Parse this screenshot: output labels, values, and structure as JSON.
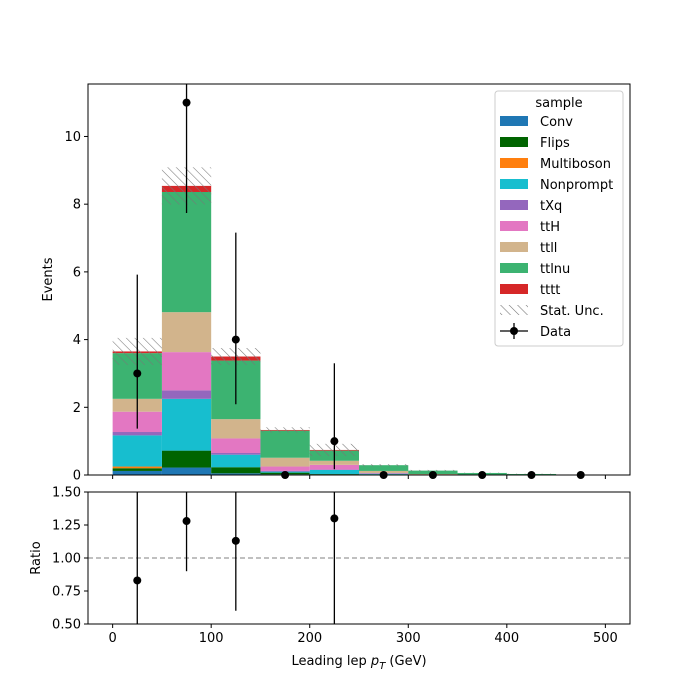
{
  "chart_data": [
    {
      "type": "bar",
      "stacked": true,
      "histogram": true,
      "bin_edges": [
        0,
        50,
        100,
        150,
        200,
        250,
        300,
        350,
        400,
        450,
        500
      ],
      "xlim": [
        -25,
        525
      ],
      "ylim": [
        0,
        11.55
      ],
      "x_ticks": [
        "0",
        "100",
        "200",
        "300",
        "400",
        "500"
      ],
      "y_ticks": [
        "0",
        "2",
        "4",
        "6",
        "8",
        "10"
      ],
      "xlabel": "",
      "ylabel": "Events",
      "legend_title": "sample",
      "legend_placement": "top-right",
      "grid": false,
      "series": [
        {
          "name": "Conv",
          "color": "#1f77b4",
          "values": [
            0.12,
            0.22,
            0.05,
            0.02,
            0.02,
            0.01,
            0.0,
            0.0,
            0.0,
            0.0
          ]
        },
        {
          "name": "Flips",
          "color": "#006400",
          "values": [
            0.08,
            0.5,
            0.18,
            0.05,
            0.01,
            0.01,
            0.0,
            0.0,
            0.0,
            0.0
          ]
        },
        {
          "name": "Multiboson",
          "color": "#ff7f0e",
          "values": [
            0.05,
            0.0,
            0.0,
            0.0,
            0.0,
            0.0,
            0.0,
            0.0,
            0.0,
            0.0
          ]
        },
        {
          "name": "Nonprompt",
          "color": "#17becf",
          "values": [
            0.92,
            1.53,
            0.37,
            0.03,
            0.12,
            0.02,
            0.0,
            0.0,
            0.0,
            0.0
          ]
        },
        {
          "name": "tXq",
          "color": "#9467bd",
          "values": [
            0.1,
            0.25,
            0.05,
            0.02,
            0.01,
            0.0,
            0.0,
            0.0,
            0.0,
            0.0
          ]
        },
        {
          "name": "ttH",
          "color": "#e377c2",
          "values": [
            0.6,
            1.13,
            0.43,
            0.13,
            0.14,
            0.02,
            0.01,
            0.0,
            0.0,
            0.0
          ]
        },
        {
          "name": "ttll",
          "color": "#d2b48c",
          "values": [
            0.38,
            1.18,
            0.57,
            0.26,
            0.12,
            0.06,
            0.02,
            0.01,
            0.0,
            0.0
          ]
        },
        {
          "name": "ttlnu",
          "color": "#3cb371",
          "values": [
            1.35,
            3.55,
            1.73,
            0.8,
            0.3,
            0.17,
            0.1,
            0.05,
            0.03,
            0.01
          ]
        },
        {
          "name": "tttt",
          "color": "#d62728",
          "values": [
            0.05,
            0.18,
            0.12,
            0.02,
            0.02,
            0.0,
            0.0,
            0.0,
            0.0,
            0.0
          ]
        }
      ],
      "stat_unc": {
        "name": "Stat. Unc.",
        "color": "#777777",
        "values": [
          0.4,
          0.55,
          0.25,
          0.08,
          0.18,
          0.03,
          0.02,
          0.01,
          0.01,
          0.005
        ]
      },
      "data": {
        "name": "Data",
        "x": [
          25,
          75,
          125,
          175,
          225,
          275,
          325,
          375,
          425,
          475
        ],
        "y": [
          3,
          11,
          4,
          0,
          1,
          0,
          0,
          0,
          0,
          0
        ],
        "err_low": [
          1.63,
          3.26,
          1.91,
          0,
          0.83,
          0,
          0,
          0,
          0,
          0
        ],
        "err_high": [
          2.92,
          4.38,
          3.16,
          0,
          2.3,
          0,
          0,
          0,
          0,
          0
        ]
      }
    },
    {
      "type": "scatter",
      "xlim": [
        -25,
        525
      ],
      "ylim": [
        0.5,
        1.5
      ],
      "x_ticks": [
        "0",
        "100",
        "200",
        "300",
        "400",
        "500"
      ],
      "y_ticks": [
        "0.50",
        "0.75",
        "1.00",
        "1.25",
        "1.50"
      ],
      "xlabel": "Leading lep p_T (GeV)",
      "ylabel": "Ratio",
      "reference_line": 1.0,
      "points": {
        "x": [
          25,
          75,
          125,
          225
        ],
        "y": [
          0.83,
          1.28,
          1.13,
          1.3
        ],
        "err_low": [
          0.45,
          0.38,
          0.53,
          1.08
        ],
        "err_high": [
          0.8,
          0.5,
          0.87,
          2.99
        ]
      }
    }
  ]
}
